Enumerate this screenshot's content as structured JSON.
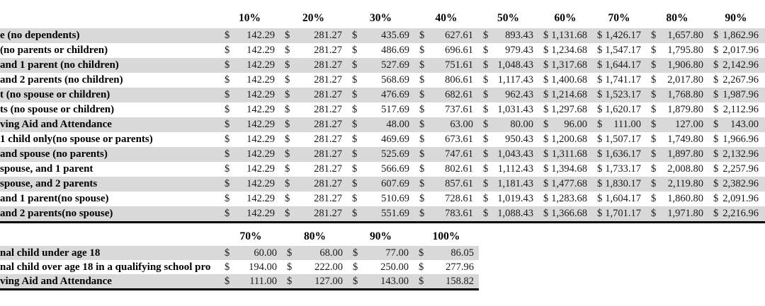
{
  "colors": {
    "row_stripe": "#d9d9d9",
    "text": "#1a1a1a",
    "label_text": "#000000",
    "table_border": "#000000",
    "background": "#ffffff"
  },
  "tables": [
    {
      "name": "compensation-rates-by-dependency-status",
      "currency": "$",
      "columns": [
        "10%",
        "20%",
        "30%",
        "40%",
        "50%",
        "60%",
        "70%",
        "80%",
        "90%"
      ],
      "rows": [
        {
          "label": "e (no dependents)",
          "values": [
            "142.29",
            "281.27",
            "435.69",
            "627.61",
            "893.43",
            "1,131.68",
            "1,426.17",
            "1,657.80",
            "1,862.96"
          ]
        },
        {
          "label": "(no parents or children)",
          "values": [
            "142.29",
            "281.27",
            "486.69",
            "696.61",
            "979.43",
            "1,234.68",
            "1,547.17",
            "1,795.80",
            "2,017.96"
          ]
        },
        {
          "label": "and 1 parent (no children)",
          "values": [
            "142.29",
            "281.27",
            "527.69",
            "751.61",
            "1,048.43",
            "1,317.68",
            "1,644.17",
            "1,906.80",
            "2,142.96"
          ]
        },
        {
          "label": "and 2 parents (no children)",
          "values": [
            "142.29",
            "281.27",
            "568.69",
            "806.61",
            "1,117.43",
            "1,400.68",
            "1,741.17",
            "2,017.80",
            "2,267.96"
          ]
        },
        {
          "label": "t (no spouse or children)",
          "values": [
            "142.29",
            "281.27",
            "476.69",
            "682.61",
            "962.43",
            "1,214.68",
            "1,523.17",
            "1,768.80",
            "1,987.96"
          ]
        },
        {
          "label": "ts (no spouse or children)",
          "values": [
            "142.29",
            "281.27",
            "517.69",
            "737.61",
            "1,031.43",
            "1,297.68",
            "1,620.17",
            "1,879.80",
            "2,112.96"
          ]
        },
        {
          "label": "ving Aid and Attendance",
          "values": [
            "142.29",
            "281.27",
            "48.00",
            "63.00",
            "80.00",
            "96.00",
            "111.00",
            "127.00",
            "143.00"
          ]
        },
        {
          "label": "1 child only(no spouse or parents)",
          "values": [
            "142.29",
            "281.27",
            "469.69",
            "673.61",
            "950.43",
            "1,200.68",
            "1,507.17",
            "1,749.80",
            "1,966.96"
          ]
        },
        {
          "label": "and spouse (no parents)",
          "values": [
            "142.29",
            "281.27",
            "525.69",
            "747.61",
            "1,043.43",
            "1,311.68",
            "1,636.17",
            "1,897.80",
            "2,132.96"
          ]
        },
        {
          "label": "spouse, and 1 parent",
          "values": [
            "142.29",
            "281.27",
            "566.69",
            "802.61",
            "1,112.43",
            "1,394.68",
            "1,733.17",
            "2,008.80",
            "2,257.96"
          ]
        },
        {
          "label": "spouse, and 2 parents",
          "values": [
            "142.29",
            "281.27",
            "607.69",
            "857.61",
            "1,181.43",
            "1,477.68",
            "1,830.17",
            "2,119.80",
            "2,382.96"
          ]
        },
        {
          "label": "and 1 parent(no spouse)",
          "values": [
            "142.29",
            "281.27",
            "510.69",
            "728.61",
            "1,019.43",
            "1,283.68",
            "1,604.17",
            "1,860.80",
            "2,091.96"
          ]
        },
        {
          "label": "and 2 parents(no spouse)",
          "values": [
            "142.29",
            "281.27",
            "551.69",
            "783.61",
            "1,088.43",
            "1,366.68",
            "1,701.17",
            "1,971.80",
            "2,216.96"
          ]
        }
      ]
    },
    {
      "name": "additional-amounts",
      "currency": "$",
      "columns": [
        "70%",
        "80%",
        "90%",
        "100%"
      ],
      "rows": [
        {
          "label": "nal child under age 18",
          "values": [
            "60.00",
            "68.00",
            "77.00",
            "86.05"
          ]
        },
        {
          "label": "nal child over age 18 in a qualifying school pro",
          "values": [
            "194.00",
            "222.00",
            "250.00",
            "277.96"
          ]
        },
        {
          "label": "ving Aid and Attendance",
          "values": [
            "111.00",
            "127.00",
            "143.00",
            "158.82"
          ]
        }
      ]
    }
  ]
}
